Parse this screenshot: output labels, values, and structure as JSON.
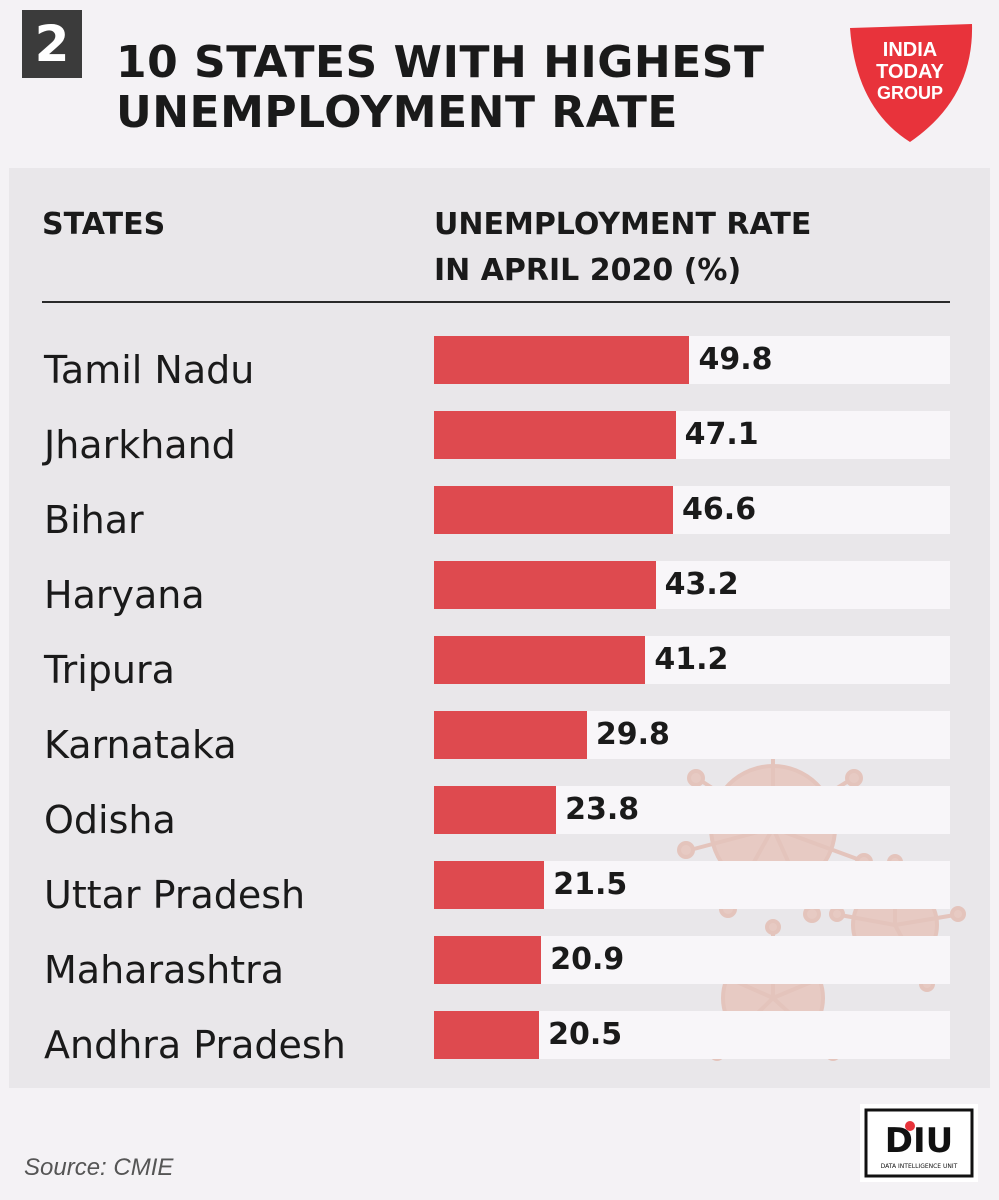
{
  "header": {
    "badge_number": "2",
    "title_line1": "10 STATES WITH HIGHEST",
    "title_line2": "UNEMPLOYMENT RATE"
  },
  "logo": {
    "line1": "INDIA",
    "line2": "TODAY",
    "line3": "GROUP"
  },
  "columns": {
    "states": "STATES",
    "rate_line1": "UNEMPLOYMENT RATE",
    "rate_line2": "IN APRIL 2020 (%)"
  },
  "chart_data": {
    "type": "bar",
    "orientation": "horizontal",
    "categories": [
      "Tamil Nadu",
      "Jharkhand",
      "Bihar",
      "Haryana",
      "Tripura",
      "Karnataka",
      "Odisha",
      "Uttar Pradesh",
      "Maharashtra",
      "Andhra Pradesh"
    ],
    "values": [
      49.8,
      47.1,
      46.6,
      43.2,
      41.2,
      29.8,
      23.8,
      21.5,
      20.9,
      20.5
    ],
    "title": "10 STATES WITH HIGHEST UNEMPLOYMENT RATE",
    "xlabel": "UNEMPLOYMENT RATE IN APRIL 2020 (%)",
    "ylabel": "STATES",
    "bar_color": "#de4a4f"
  },
  "footer": {
    "source": "Source: CMIE",
    "diu_logo": "DIU",
    "diu_subtext": "DATA INTELLIGENCE UNIT"
  }
}
